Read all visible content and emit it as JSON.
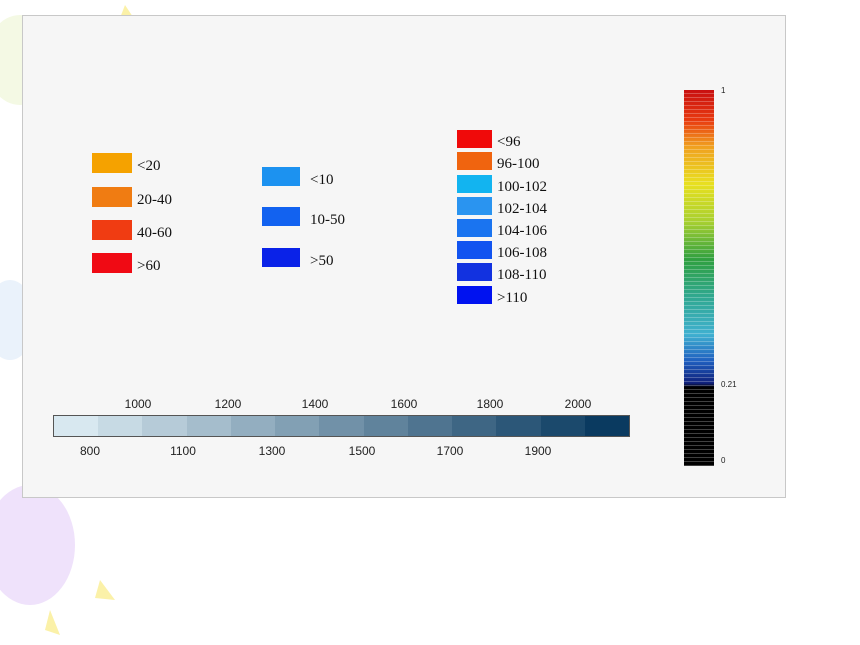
{
  "legend_a": {
    "items": [
      {
        "label": "<20",
        "color": "#f5a200"
      },
      {
        "label": "20-40",
        "color": "#f07c12"
      },
      {
        "label": "40-60",
        "color": "#f03c12"
      },
      {
        "label": ">60",
        "color": "#f00a14"
      }
    ]
  },
  "legend_b": {
    "items": [
      {
        "label": "<10",
        "color": "#1c92f0"
      },
      {
        "label": "10-50",
        "color": "#1262f0"
      },
      {
        "label": ">50",
        "color": "#0a22e8"
      }
    ]
  },
  "legend_c": {
    "items": [
      {
        "label": "<96",
        "color": "#f00a0a"
      },
      {
        "label": "96-100",
        "color": "#f0640f"
      },
      {
        "label": "100-102",
        "color": "#12b4f0"
      },
      {
        "label": "102-104",
        "color": "#2a94f0"
      },
      {
        "label": "104-106",
        "color": "#1a74f0"
      },
      {
        "label": "106-108",
        "color": "#1254f0"
      },
      {
        "label": "108-110",
        "color": "#1232e0"
      },
      {
        "label": ">110",
        "color": "#0012f0"
      }
    ]
  },
  "horizontal_scale": {
    "top_labels": [
      "1000",
      "1200",
      "1400",
      "1600",
      "1800",
      "2000"
    ],
    "bottom_labels": [
      "800",
      "1100",
      "1300",
      "1500",
      "1700",
      "1900"
    ]
  },
  "vertical_scale": {
    "labels": [
      "1",
      "0.21",
      "0"
    ]
  }
}
